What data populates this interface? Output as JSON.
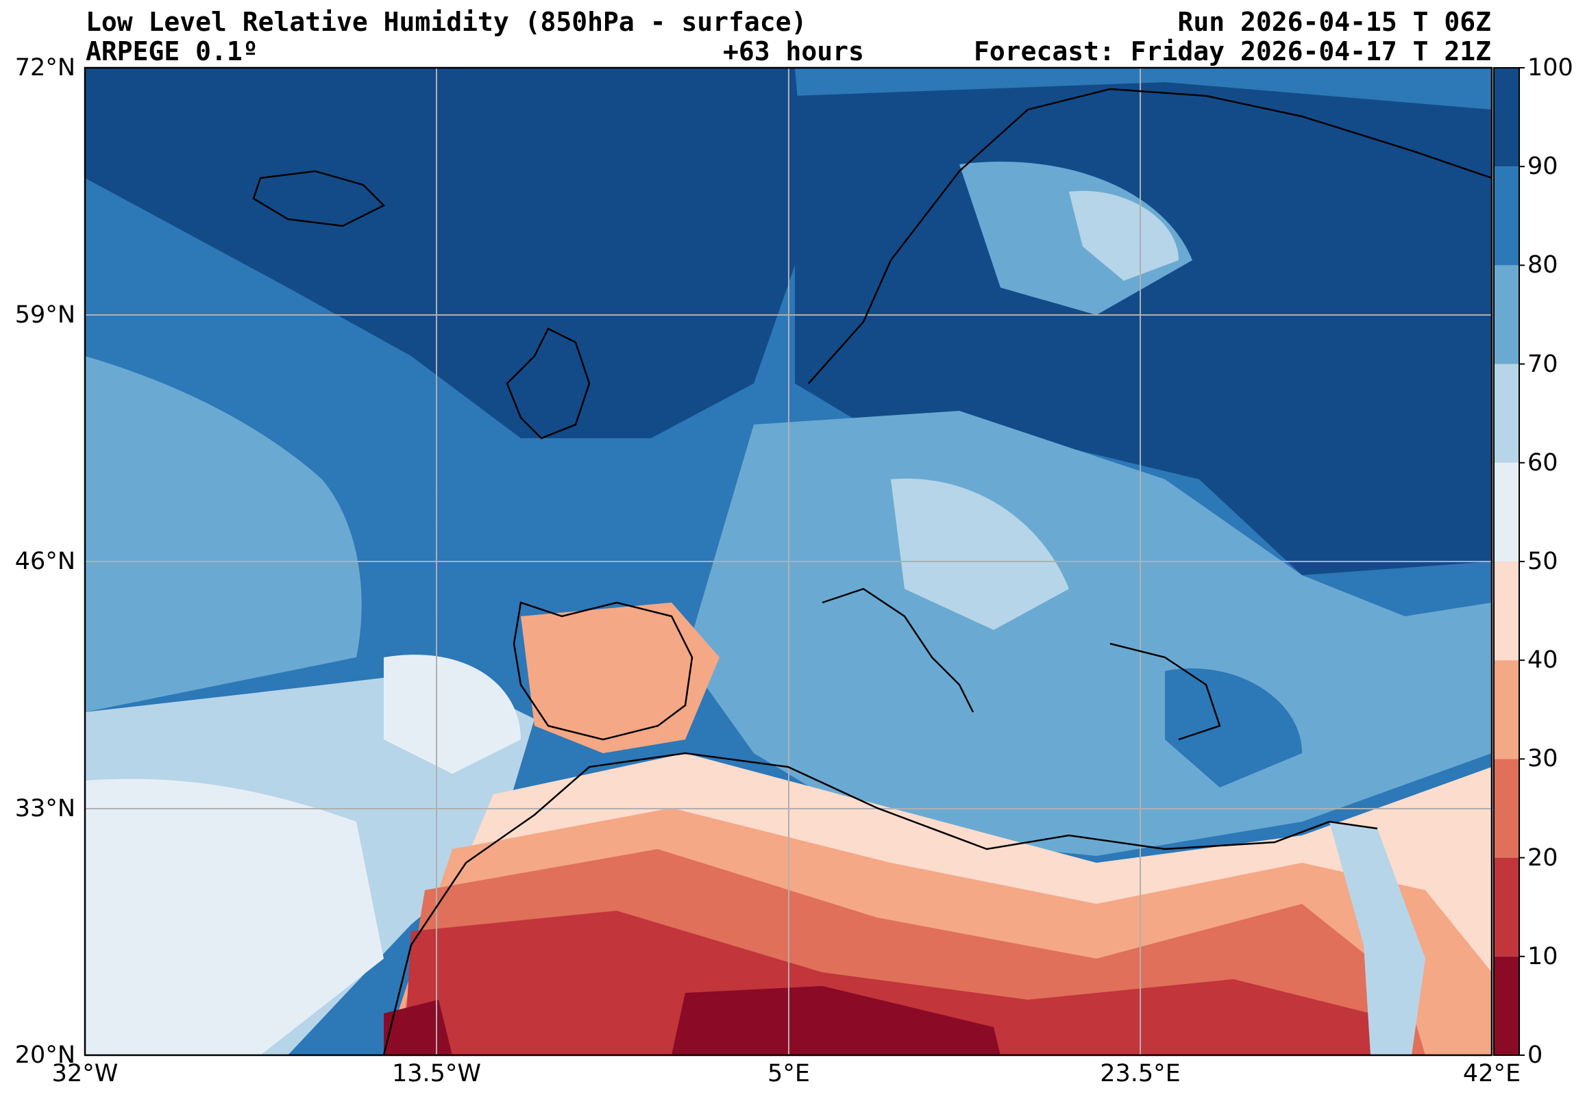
{
  "header": {
    "title": "Low Level Relative Humidity (850hPa - surface)",
    "model": "ARPEGE 0.1º",
    "lead_time": "+63 hours",
    "run": "Run 2026-04-15 T 06Z",
    "forecast": "Forecast: Friday 2026-04-17 T 21Z"
  },
  "map": {
    "lat_labels": [
      "72°N",
      "59°N",
      "46°N",
      "33°N",
      "20°N"
    ],
    "lon_labels": [
      "32°W",
      "13.5°W",
      "5°E",
      "23.5°E",
      "42°E"
    ],
    "lat_range": [
      20,
      72
    ],
    "lon_range": [
      -32,
      42
    ],
    "grid": true
  },
  "colorbar": {
    "tick_labels": [
      "0",
      "10",
      "20",
      "30",
      "40",
      "50",
      "60",
      "70",
      "80",
      "90",
      "100"
    ],
    "colors": [
      "#8b0a26",
      "#c1353b",
      "#e0705a",
      "#f4a886",
      "#fcdccc",
      "#e6eef5",
      "#b7d5e8",
      "#6aaad2",
      "#2d78b7",
      "#134b89"
    ]
  }
}
